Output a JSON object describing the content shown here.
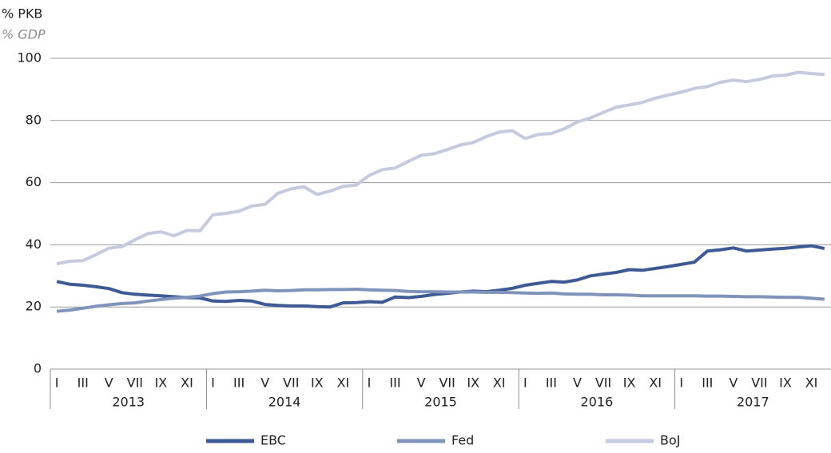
{
  "chart_data": {
    "type": "line",
    "y_label": "% PKB",
    "y_label_en": "% GDP",
    "categories": [
      "I",
      null,
      "III",
      null,
      "V",
      null,
      "VII",
      null,
      "IX",
      null,
      "XI",
      null,
      "I",
      null,
      "III",
      null,
      "V",
      null,
      "VII",
      null,
      "IX",
      null,
      "XI",
      null,
      "I",
      null,
      "III",
      null,
      "V",
      null,
      "VII",
      null,
      "IX",
      null,
      "XI",
      null,
      "I",
      null,
      "III",
      null,
      "V",
      null,
      "VII",
      null,
      "IX",
      null,
      "XI",
      null,
      "I",
      null,
      "III",
      null,
      "V",
      null,
      "VII",
      null,
      "IX",
      null,
      "XI",
      null
    ],
    "groups": [
      "2013",
      "2014",
      "2015",
      "2016",
      "2017"
    ],
    "ylim": [
      0,
      100
    ],
    "yticks": [
      0,
      20,
      40,
      60,
      80,
      100
    ],
    "grid": true,
    "legend": "bottom",
    "series": [
      {
        "name": "EBC",
        "color": "#3d5a94",
        "values": [
          28.2,
          27.3,
          27,
          26.5,
          25.9,
          24.6,
          24.1,
          23.8,
          23.6,
          23.3,
          23,
          22.9,
          21.9,
          21.8,
          22.1,
          21.9,
          20.8,
          20.5,
          20.3,
          20.3,
          20.1,
          20,
          21.3,
          21.4,
          21.7,
          21.5,
          23.2,
          23,
          23.4,
          24,
          24.4,
          24.8,
          25.1,
          24.9,
          25.4,
          26,
          27,
          27.6,
          28.2,
          28,
          28.7,
          30,
          30.6,
          31.1,
          32,
          31.8,
          32.4,
          33,
          33.7,
          34.4,
          38,
          38.4,
          39,
          38,
          38.3,
          38.6,
          38.9,
          39.3,
          39.7,
          38.8
        ]
      },
      {
        "name": "Fed",
        "color": "#8094bb",
        "values": [
          18.6,
          19,
          19.6,
          20.2,
          20.7,
          21.1,
          21.3,
          21.9,
          22.4,
          22.8,
          23.1,
          23.5,
          24.3,
          24.8,
          24.9,
          25.1,
          25.4,
          25.2,
          25.3,
          25.5,
          25.5,
          25.6,
          25.6,
          25.7,
          25.5,
          25.4,
          25.3,
          25,
          24.9,
          24.9,
          24.8,
          24.8,
          24.8,
          24.7,
          24.7,
          24.6,
          24.5,
          24.4,
          24.5,
          24.2,
          24.1,
          24.1,
          23.9,
          23.9,
          23.8,
          23.6,
          23.6,
          23.6,
          23.6,
          23.6,
          23.5,
          23.5,
          23.4,
          23.3,
          23.3,
          23.2,
          23.1,
          23.1,
          22.8,
          22.5
        ]
      },
      {
        "name": "BoJ",
        "color": "#c6cadf",
        "values": [
          33.9,
          34.7,
          34.9,
          36.8,
          38.9,
          39.4,
          41.6,
          43.6,
          44.2,
          42.9,
          44.6,
          44.5,
          49.7,
          50.1,
          50.8,
          52.5,
          53,
          56.6,
          58,
          58.7,
          56.2,
          57.3,
          58.8,
          59.2,
          62.3,
          64.2,
          64.7,
          66.8,
          68.8,
          69.3,
          70.6,
          72.1,
          72.9,
          74.8,
          76.3,
          76.7,
          74.2,
          75.5,
          75.8,
          77.3,
          79.5,
          80.8,
          82.6,
          84.3,
          85,
          85.8,
          87.2,
          88.2,
          89.1,
          90.3,
          90.9,
          92.3,
          93,
          92.5,
          93.2,
          94.3,
          94.6,
          95.5,
          95.1,
          94.8
        ]
      }
    ]
  }
}
